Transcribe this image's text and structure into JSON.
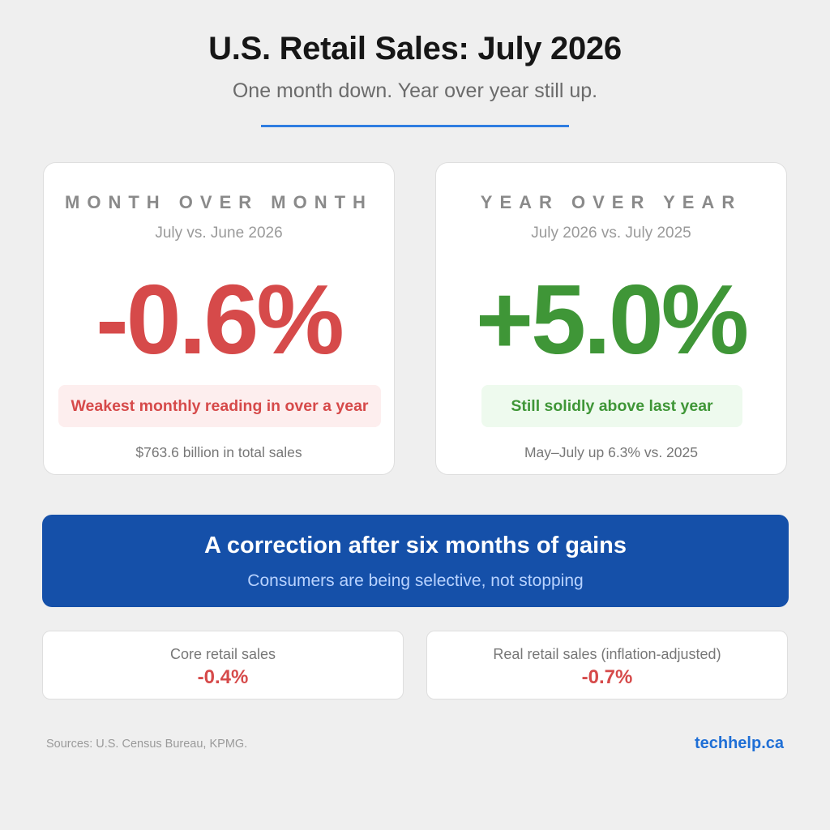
{
  "header": {
    "title": "U.S. Retail Sales: July 2026",
    "subtitle": "One month down. Year over year still up."
  },
  "cards": [
    {
      "label": "MONTH OVER MONTH",
      "period": "July vs. June 2026",
      "value": "-0.6%",
      "note": "Weakest monthly reading in over a year",
      "footer": "$763.6 billion in total sales"
    },
    {
      "label": "YEAR OVER YEAR",
      "period": "July 2026 vs. July 2025",
      "value": "+5.0%",
      "note": "Still solidly above last year",
      "footer": "May–July up 6.3% vs. 2025"
    }
  ],
  "banner": {
    "title": "A correction after six months of gains",
    "subtitle": "Consumers are being selective, not stopping"
  },
  "stats": [
    {
      "label": "Core retail sales",
      "value": "-0.4%"
    },
    {
      "label": "Real retail sales (inflation-adjusted)",
      "value": "-0.7%"
    }
  ],
  "footer": {
    "sources": "Sources: U.S. Census Bureau, KPMG.",
    "brand": "techhelp.ca"
  },
  "colors": {
    "background": "#efefef",
    "accent_rule": "#2f7de1",
    "negative": "#d64a4a",
    "positive": "#3f9637",
    "banner": "#1550a9",
    "brand": "#1f6fd6"
  }
}
